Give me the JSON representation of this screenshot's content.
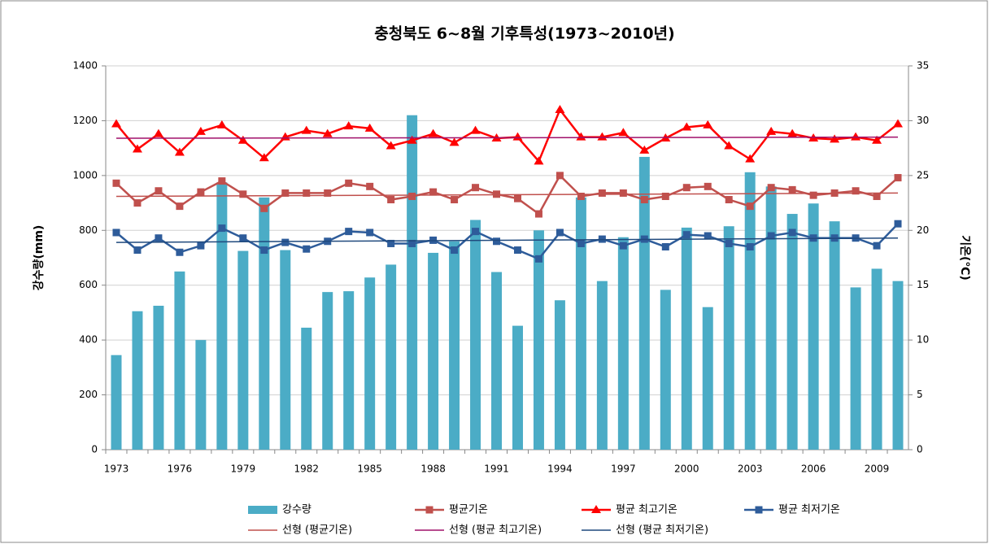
{
  "chart_data": {
    "type": "bar",
    "title": "충청북도 6~8월 기후특성(1973~2010년)",
    "y_label": "강수량(mm)",
    "y2_label": "기온(℃)",
    "categories": [
      "1973",
      null,
      null,
      "1976",
      null,
      null,
      "1979",
      null,
      null,
      "1982",
      null,
      null,
      "1985",
      null,
      null,
      "1988",
      null,
      null,
      "1991",
      null,
      null,
      "1994",
      null,
      null,
      "1997",
      null,
      null,
      "2000",
      null,
      null,
      "2003",
      null,
      null,
      "2006",
      null,
      null,
      "2009",
      null
    ],
    "series": [
      {
        "name": "강수량",
        "type": "bar",
        "color": "#4bacc6",
        "values": [
          345,
          505,
          525,
          650,
          400,
          975,
          725,
          920,
          728,
          445,
          575,
          578,
          628,
          675,
          1220,
          718,
          760,
          838,
          648,
          452,
          800,
          545,
          920,
          615,
          775,
          1068,
          583,
          810,
          520,
          815,
          1012,
          960,
          860,
          898,
          833,
          592,
          660,
          615
        ]
      },
      {
        "name": "평균기온",
        "type": "line",
        "axis": "y2",
        "marker": "square",
        "color": "#c0504d",
        "values": [
          24.3,
          22.5,
          23.6,
          22.2,
          23.5,
          24.5,
          23.3,
          22.0,
          23.4,
          23.4,
          23.4,
          24.3,
          24.0,
          22.8,
          23.1,
          23.5,
          22.8,
          23.9,
          23.3,
          22.9,
          21.5,
          25.0,
          23.1,
          23.4,
          23.4,
          22.8,
          23.1,
          23.9,
          24.0,
          22.8,
          22.2,
          23.9,
          23.7,
          23.2,
          23.4,
          23.6,
          23.1,
          24.8
        ]
      },
      {
        "name": "평균 최고기온",
        "type": "line",
        "axis": "y2",
        "marker": "triangle",
        "color": "#ff0000",
        "values": [
          29.7,
          27.4,
          28.8,
          27.1,
          29.0,
          29.6,
          28.2,
          26.6,
          28.5,
          29.1,
          28.8,
          29.5,
          29.3,
          27.7,
          28.2,
          28.8,
          28.0,
          29.1,
          28.4,
          28.5,
          26.3,
          31.0,
          28.5,
          28.5,
          28.9,
          27.3,
          28.4,
          29.4,
          29.6,
          27.7,
          26.5,
          29.0,
          28.8,
          28.4,
          28.3,
          28.5,
          28.2,
          29.7
        ]
      },
      {
        "name": "평균 최저기온",
        "type": "line",
        "axis": "y2",
        "marker": "square",
        "color": "#2e5c9a",
        "values": [
          19.8,
          18.2,
          19.3,
          18.0,
          18.6,
          20.2,
          19.3,
          18.2,
          18.9,
          18.3,
          19.0,
          19.9,
          19.8,
          18.8,
          18.8,
          19.1,
          18.2,
          19.9,
          19.0,
          18.2,
          17.4,
          19.8,
          18.8,
          19.2,
          18.6,
          19.2,
          18.5,
          19.6,
          19.5,
          18.8,
          18.5,
          19.5,
          19.8,
          19.3,
          19.3,
          19.3,
          18.6,
          20.6
        ]
      }
    ],
    "trendlines": [
      {
        "name": "선형 (평균기온)",
        "axis": "y2",
        "color": "#c0504d",
        "values": [
          23.1,
          23.4
        ]
      },
      {
        "name": "선형 (평균 최고기온)",
        "axis": "y2",
        "color": "#a0106a",
        "values": [
          28.4,
          28.5
        ]
      },
      {
        "name": "선형 (평균 최저기온)",
        "axis": "y2",
        "color": "#1f497d",
        "values": [
          18.9,
          19.3
        ]
      }
    ],
    "ylim": [
      0,
      1400
    ],
    "yticks": [
      0,
      200,
      400,
      600,
      800,
      1000,
      1200,
      1400
    ],
    "y2lim": [
      0,
      35
    ],
    "y2ticks": [
      0,
      5,
      10,
      15,
      20,
      25,
      30,
      35
    ],
    "grid": true
  }
}
